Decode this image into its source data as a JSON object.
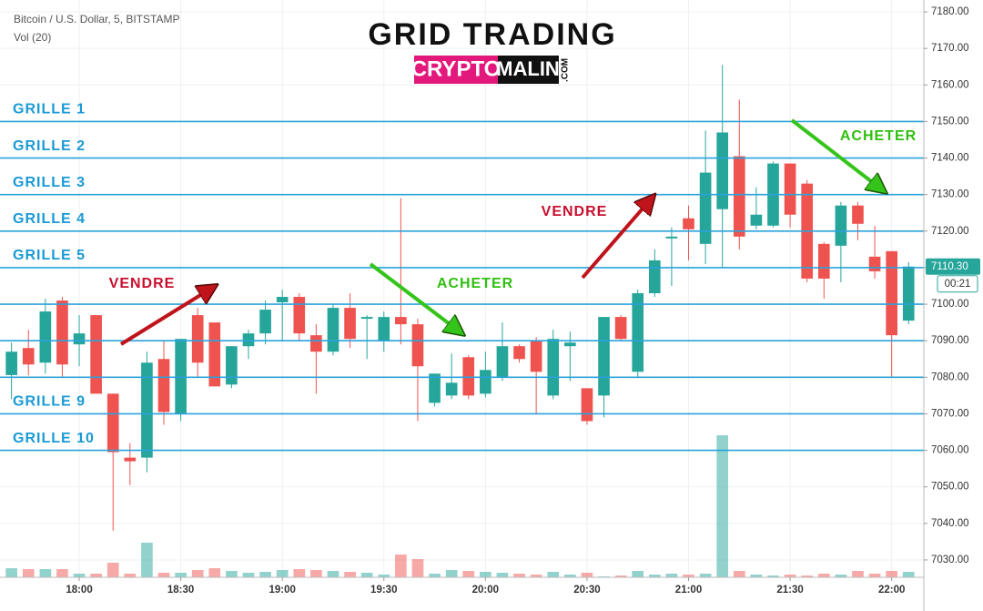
{
  "header": {
    "symbol": "Bitcoin / U.S. Dollar, 5, BITSTAMP",
    "indicator": "Vol (20)"
  },
  "title": "GRID TRADING",
  "logo": {
    "left": "CRYPTO",
    "right": "MALIN",
    "suffix": ".COM"
  },
  "annotations": [
    "VENDRE",
    "ACHETER",
    "VENDRE",
    "ACHETER"
  ],
  "chart_data": {
    "type": "candlestick",
    "up_color": "#26a69a",
    "down_color": "#ef5350",
    "x": [
      1060,
      1065,
      1070,
      1075,
      1080,
      1085,
      1090,
      1095,
      1100,
      1105,
      1110,
      1115,
      1120,
      1125,
      1130,
      1135,
      1140,
      1145,
      1150,
      1155,
      1160,
      1165,
      1170,
      1175,
      1180,
      1185,
      1190,
      1195,
      1200,
      1205,
      1210,
      1215,
      1220,
      1225,
      1230,
      1235,
      1240,
      1245,
      1250,
      1255,
      1260,
      1265,
      1270,
      1275,
      1280,
      1285,
      1290,
      1295,
      1300,
      1305,
      1310,
      1315,
      1320,
      1325
    ],
    "open": [
      7080.6,
      7088,
      7084,
      7101,
      7089,
      7097,
      7075.5,
      7058,
      7058,
      7085,
      7070,
      7097,
      7095,
      7078,
      7088.5,
      7092,
      7100.5,
      7102,
      7091.5,
      7087,
      7099,
      7096,
      7090,
      7096.5,
      7094.5,
      7073,
      7075,
      7085.5,
      7075.5,
      7080,
      7088.5,
      7090,
      7075,
      7088.5,
      7077,
      7075,
      7096.5,
      7081.5,
      7103,
      7118,
      7123.5,
      7116.5,
      7126,
      7140.5,
      7121.5,
      7121.5,
      7138.5,
      7133,
      7116.5,
      7116,
      7127,
      7113,
      7114.5,
      7095.5
    ],
    "high": [
      7089.5,
      7093,
      7101.5,
      7102,
      7097,
      7097,
      7075.5,
      7062,
      7087,
      7090,
      7090.5,
      7099,
      7095,
      7088.5,
      7093,
      7101,
      7104,
      7103,
      7094.5,
      7100,
      7103,
      7097,
      7098,
      7129,
      7096,
      7081,
      7086.5,
      7086,
      7087,
      7095,
      7089,
      7091,
      7093,
      7092.5,
      7077,
      7096.5,
      7097,
      7104,
      7115,
      7121,
      7127,
      7147.5,
      7165.5,
      7156,
      7132,
      7139,
      7138.5,
      7134,
      7117,
      7128,
      7128,
      7121.5,
      7114.5,
      7111.5
    ],
    "low": [
      7074,
      7080.5,
      7081,
      7080,
      7083,
      7075.5,
      7038,
      7050.5,
      7054,
      7067,
      7068,
      7080,
      7077.5,
      7077,
      7085,
      7089,
      7090,
      7090,
      7075.5,
      7086,
      7088,
      7085,
      7087,
      7089,
      7068,
      7072,
      7074,
      7074,
      7074.5,
      7079,
      7084,
      7070,
      7074,
      7079,
      7067,
      7069,
      7090,
      7080,
      7102,
      7105,
      7112,
      7111,
      7110,
      7115,
      7120.5,
      7121,
      7121,
      7106,
      7101.5,
      7106,
      7117.5,
      7107,
      7080,
      7094.5
    ],
    "close": [
      7087,
      7083.5,
      7098,
      7083.5,
      7092,
      7075.5,
      7059.5,
      7057,
      7084,
      7070.5,
      7090.5,
      7084,
      7077.5,
      7088.5,
      7092,
      7098.5,
      7102,
      7092,
      7087,
      7099,
      7090.5,
      7096.5,
      7096.5,
      7094.5,
      7083,
      7081,
      7078.5,
      7075,
      7082,
      7088.5,
      7085,
      7081.5,
      7090.5,
      7089.5,
      7068,
      7096.5,
      7090.5,
      7103,
      7112,
      7118.5,
      7120.5,
      7136,
      7147,
      7118.5,
      7124.5,
      7138.5,
      7124.5,
      7107,
      7107,
      7127,
      7122,
      7109,
      7091.5,
      7110.3
    ],
    "volume": [
      10,
      9,
      9,
      9,
      4,
      4,
      16,
      4,
      38,
      5,
      5,
      8,
      10,
      7,
      5,
      6,
      8,
      9,
      8,
      7,
      6,
      5,
      3,
      25,
      20,
      4,
      8,
      7,
      6,
      5,
      4,
      3,
      6,
      3,
      5,
      1,
      2,
      7,
      3,
      4,
      3,
      4,
      156,
      7,
      3,
      2,
      3,
      2,
      4,
      3,
      7,
      4,
      7,
      6
    ],
    "volume_ylim": [
      0,
      200
    ],
    "xlim": [
      1056.6,
      1329.5
    ],
    "xticks": [
      {
        "value": 1080,
        "label": "18:00"
      },
      {
        "value": 1110,
        "label": "18:30"
      },
      {
        "value": 1140,
        "label": "19:00"
      },
      {
        "value": 1170,
        "label": "19:30"
      },
      {
        "value": 1200,
        "label": "20:00"
      },
      {
        "value": 1230,
        "label": "20:30"
      },
      {
        "value": 1260,
        "label": "21:00"
      },
      {
        "value": 1290,
        "label": "21:30"
      },
      {
        "value": 1320,
        "label": "22:00"
      }
    ],
    "ylim": [
      7025.25,
      7183.25
    ],
    "yticks": [
      {
        "value": 7030,
        "label": "7030.00"
      },
      {
        "value": 7040,
        "label": "7040.00"
      },
      {
        "value": 7050,
        "label": "7050.00"
      },
      {
        "value": 7060,
        "label": "7060.00"
      },
      {
        "value": 7070,
        "label": "7070.00"
      },
      {
        "value": 7080,
        "label": "7080.00"
      },
      {
        "value": 7090,
        "label": "7090.00"
      },
      {
        "value": 7100,
        "label": "7100.00"
      },
      {
        "value": 7110,
        "label": "7110.00"
      },
      {
        "value": 7120,
        "label": "7120.00"
      },
      {
        "value": 7130,
        "label": "7130.00"
      },
      {
        "value": 7140,
        "label": "7140.00"
      },
      {
        "value": 7150,
        "label": "7150.00"
      },
      {
        "value": 7160,
        "label": "7160.00"
      },
      {
        "value": 7170,
        "label": "7170.00"
      },
      {
        "value": 7180,
        "label": "7180.00"
      }
    ],
    "grid_levels": [
      7150,
      7140,
      7130,
      7120,
      7110,
      7100,
      7090,
      7080,
      7070,
      7060
    ],
    "grid_labels": [
      "GRILLE 1",
      "GRILLE 2",
      "GRILLE 3",
      "GRILLE 4",
      "GRILLE 5",
      null,
      null,
      null,
      "GRILLE 9",
      "GRILLE 10"
    ],
    "grid_color": "#2aa2dd",
    "last_price": {
      "value": 7110.3,
      "label": "7110.30"
    },
    "countdown": "00:21"
  }
}
